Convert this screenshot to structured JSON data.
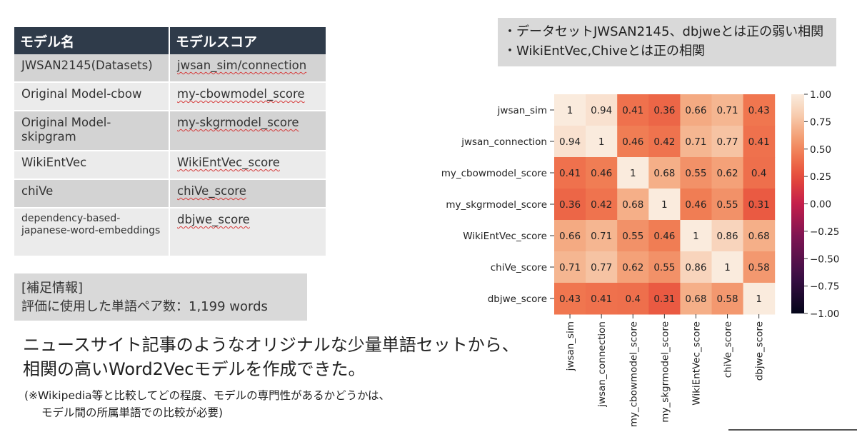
{
  "table": {
    "headers": [
      "モデル名",
      "モデルスコア"
    ],
    "rows": [
      {
        "model": "JWSAN2145(Datasets)",
        "score": "jwsan_sim/connection"
      },
      {
        "model": "Original Model-cbow",
        "score": "my-cbowmodel_score"
      },
      {
        "model": "Original Model-skipgram",
        "score": "my-skgrmodel_score"
      },
      {
        "model": "WikiEntVec",
        "score": "WikiEntVec_score"
      },
      {
        "model": "chiVe",
        "score": "chiVe_score"
      },
      {
        "model": "dependency-based-japanese-word-embeddings",
        "score": "dbjwe_score"
      }
    ]
  },
  "supplement": {
    "title": "[補足情報]",
    "line": "評価に使用した単語ペア数：1,199 words"
  },
  "conclusion": {
    "line1": "ニュースサイト記事のようなオリジナルな少量単語セットから、",
    "line2": "相関の高いWord2Vecモデルを作成できた。"
  },
  "note": {
    "line1": "(※Wikipedia等と比較してどの程度、モデルの専門性があるかどうかは、",
    "line2": "モデル間の所属単語での比較が必要)"
  },
  "callout": {
    "line1": "・データセットJWSAN2145、dbjweとは正の弱い相関",
    "line2": "・WikiEntVec,Chiveとは正の相関"
  },
  "chart_data": {
    "type": "heatmap",
    "labels": [
      "jwsan_sim",
      "jwsan_connection",
      "my_cbowmodel_score",
      "my_skgrmodel_score",
      "WikiEntVec_score",
      "chiVe_score",
      "dbjwe_score"
    ],
    "values": [
      [
        1,
        0.94,
        0.41,
        0.36,
        0.66,
        0.71,
        0.43
      ],
      [
        0.94,
        1,
        0.46,
        0.42,
        0.71,
        0.77,
        0.41
      ],
      [
        0.41,
        0.46,
        1,
        0.68,
        0.55,
        0.62,
        0.4
      ],
      [
        0.36,
        0.42,
        0.68,
        1,
        0.46,
        0.55,
        0.31
      ],
      [
        0.66,
        0.71,
        0.55,
        0.46,
        1,
        0.86,
        0.68
      ],
      [
        0.71,
        0.77,
        0.62,
        0.55,
        0.86,
        1,
        0.58
      ],
      [
        0.43,
        0.41,
        0.4,
        0.31,
        0.68,
        0.58,
        1
      ]
    ],
    "colorbar": {
      "range": [
        -1,
        1
      ],
      "ticks": [
        "1.00",
        "0.75",
        "0.50",
        "0.25",
        "0.00",
        "−0.25",
        "−0.50",
        "−0.75",
        "−1.00"
      ]
    }
  }
}
